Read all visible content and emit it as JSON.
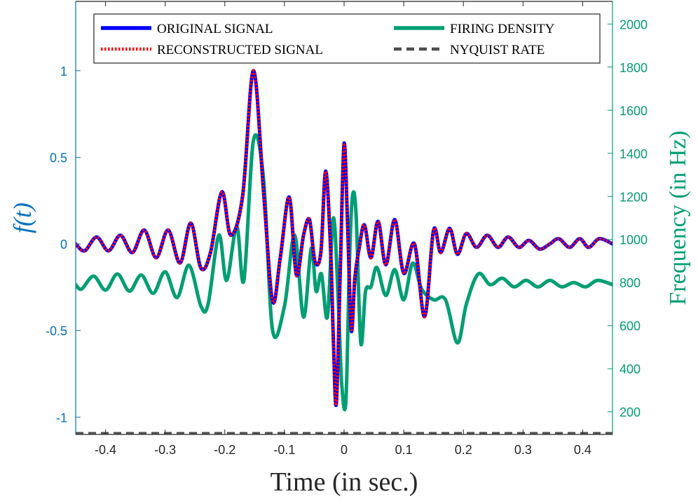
{
  "chart_data": {
    "type": "line",
    "xlabel": "Time (in sec.)",
    "ylabel_left_plain": "f(t)",
    "ylabel_right": "Frequency (in Hz)",
    "xlim": [
      -0.45,
      0.45
    ],
    "ylim_left": [
      -1.1,
      1.4
    ],
    "ylim_right": [
      95,
      2105
    ],
    "x_ticks": [
      -0.4,
      -0.3,
      -0.2,
      -0.1,
      0,
      0.1,
      0.2,
      0.3,
      0.4
    ],
    "x_tick_labels": [
      "-0.4",
      "-0.3",
      "-0.2",
      "-0.1",
      "0",
      "0.1",
      "0.2",
      "0.3",
      "0.4"
    ],
    "y_left_ticks": [
      -1,
      -0.5,
      0,
      0.5,
      1
    ],
    "y_left_tick_labels": [
      "-1",
      "-0.5",
      "0",
      "0.5",
      "1"
    ],
    "y_right_ticks": [
      200,
      400,
      600,
      800,
      1000,
      1200,
      1400,
      1600,
      1800,
      2000
    ],
    "y_right_tick_labels": [
      "200",
      "400",
      "600",
      "800",
      "1000",
      "1200",
      "1400",
      "1600",
      "1800",
      "2000"
    ],
    "grid": false,
    "legend_position": "top",
    "series": [
      {
        "name": "ORIGINAL SIGNAL",
        "axis": "left",
        "color": "#0000FF",
        "style": "solid",
        "x": [
          -0.45,
          -0.435,
          -0.415,
          -0.395,
          -0.375,
          -0.355,
          -0.335,
          -0.315,
          -0.295,
          -0.275,
          -0.257,
          -0.24,
          -0.224,
          -0.205,
          -0.19,
          -0.17,
          -0.152,
          -0.135,
          -0.12,
          -0.107,
          -0.092,
          -0.08,
          -0.068,
          -0.058,
          -0.049,
          -0.039,
          -0.031,
          -0.023,
          -0.018,
          -0.013,
          -0.006,
          0.0,
          0.006,
          0.012,
          0.018,
          0.025,
          0.034,
          0.045,
          0.057,
          0.07,
          0.085,
          0.1,
          0.118,
          0.135,
          0.15,
          0.162,
          0.177,
          0.19,
          0.205,
          0.222,
          0.24,
          0.258,
          0.275,
          0.293,
          0.31,
          0.328,
          0.345,
          0.36,
          0.378,
          0.395,
          0.41,
          0.428,
          0.45
        ],
        "y": [
          0.0,
          -0.04,
          0.04,
          -0.04,
          0.05,
          -0.05,
          0.08,
          -0.08,
          0.08,
          -0.11,
          0.12,
          -0.14,
          -0.05,
          0.3,
          0.05,
          0.28,
          1.0,
          0.3,
          -0.33,
          -0.08,
          0.27,
          -0.18,
          0.05,
          0.14,
          -0.1,
          -0.05,
          0.42,
          0.0,
          -0.55,
          -0.92,
          -0.1,
          0.58,
          0.1,
          -0.5,
          -0.2,
          -0.03,
          0.11,
          -0.08,
          0.13,
          -0.12,
          0.14,
          -0.17,
          0.0,
          -0.42,
          0.08,
          -0.05,
          0.09,
          -0.06,
          0.06,
          -0.02,
          0.05,
          -0.02,
          0.04,
          -0.02,
          0.02,
          -0.03,
          0.0,
          0.03,
          -0.02,
          0.03,
          -0.02,
          0.03,
          0.0
        ]
      },
      {
        "name": "RECONSTRUCTED SIGNAL",
        "axis": "left",
        "color": "#FF0000",
        "style": "dotted",
        "x": [
          -0.45,
          -0.435,
          -0.415,
          -0.395,
          -0.375,
          -0.355,
          -0.335,
          -0.315,
          -0.295,
          -0.275,
          -0.257,
          -0.24,
          -0.224,
          -0.205,
          -0.19,
          -0.17,
          -0.152,
          -0.135,
          -0.12,
          -0.107,
          -0.092,
          -0.08,
          -0.068,
          -0.058,
          -0.049,
          -0.039,
          -0.031,
          -0.023,
          -0.018,
          -0.013,
          -0.006,
          0.0,
          0.006,
          0.012,
          0.018,
          0.025,
          0.034,
          0.045,
          0.057,
          0.07,
          0.085,
          0.1,
          0.118,
          0.135,
          0.15,
          0.162,
          0.177,
          0.19,
          0.205,
          0.222,
          0.24,
          0.258,
          0.275,
          0.293,
          0.31,
          0.328,
          0.345,
          0.36,
          0.378,
          0.395,
          0.41,
          0.428,
          0.45
        ],
        "y": [
          0.0,
          -0.04,
          0.04,
          -0.04,
          0.05,
          -0.05,
          0.08,
          -0.08,
          0.08,
          -0.11,
          0.12,
          -0.14,
          -0.05,
          0.3,
          0.05,
          0.28,
          1.0,
          0.3,
          -0.33,
          -0.08,
          0.27,
          -0.18,
          0.05,
          0.14,
          -0.1,
          -0.05,
          0.42,
          0.0,
          -0.55,
          -0.92,
          -0.1,
          0.58,
          0.1,
          -0.5,
          -0.2,
          -0.03,
          0.11,
          -0.08,
          0.13,
          -0.12,
          0.14,
          -0.17,
          0.0,
          -0.42,
          0.08,
          -0.05,
          0.09,
          -0.06,
          0.06,
          -0.02,
          0.05,
          -0.02,
          0.04,
          -0.02,
          0.02,
          -0.03,
          0.0,
          0.03,
          -0.02,
          0.03,
          -0.02,
          0.03,
          0.0
        ]
      },
      {
        "name": "FIRING DENSITY",
        "axis": "right",
        "color": "#009E73",
        "style": "solid",
        "x": [
          -0.45,
          -0.44,
          -0.42,
          -0.4,
          -0.38,
          -0.36,
          -0.34,
          -0.32,
          -0.3,
          -0.28,
          -0.26,
          -0.24,
          -0.228,
          -0.21,
          -0.197,
          -0.18,
          -0.168,
          -0.152,
          -0.135,
          -0.12,
          -0.1,
          -0.083,
          -0.068,
          -0.055,
          -0.047,
          -0.038,
          -0.028,
          -0.018,
          -0.01,
          -0.004,
          0.003,
          0.009,
          0.014,
          0.02,
          0.028,
          0.036,
          0.045,
          0.055,
          0.07,
          0.085,
          0.1,
          0.115,
          0.13,
          0.15,
          0.17,
          0.19,
          0.205,
          0.225,
          0.245,
          0.265,
          0.285,
          0.305,
          0.325,
          0.345,
          0.365,
          0.385,
          0.405,
          0.425,
          0.45
        ],
        "y": [
          790,
          770,
          830,
          765,
          840,
          760,
          835,
          750,
          850,
          730,
          880,
          690,
          700,
          1020,
          810,
          1060,
          810,
          1460,
          1280,
          580,
          690,
          1020,
          640,
          960,
          760,
          840,
          640,
          1100,
          730,
          330,
          250,
          900,
          1200,
          1120,
          520,
          760,
          780,
          870,
          740,
          860,
          720,
          890,
          770,
          720,
          720,
          520,
          700,
          840,
          790,
          820,
          780,
          810,
          780,
          810,
          780,
          800,
          780,
          810,
          790
        ]
      },
      {
        "name": "NYQUIST RATE",
        "axis": "right",
        "color": "#4D4D4D",
        "style": "dashed",
        "x": [
          -0.45,
          0.45
        ],
        "y": [
          100,
          100
        ]
      }
    ]
  }
}
